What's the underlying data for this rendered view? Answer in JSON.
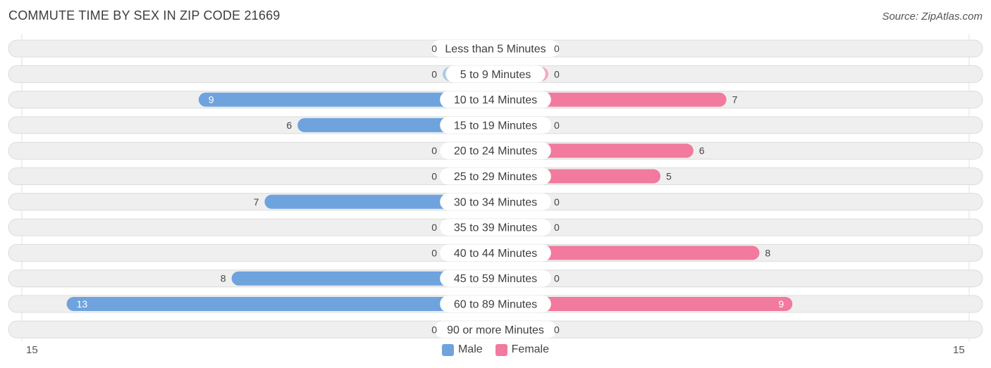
{
  "title": "COMMUTE TIME BY SEX IN ZIP CODE 21669",
  "source": "Source: ZipAtlas.com",
  "colors": {
    "male": "#6ea3dd",
    "male_light": "#a9c9ec",
    "female": "#f17a9e",
    "female_light": "#f6a9c0",
    "row_bg": "#efefef",
    "row_border": "#dcdcdc"
  },
  "axis": {
    "left_label": "15",
    "right_label": "15"
  },
  "legend": {
    "male_label": "Male",
    "female_label": "Female"
  },
  "chart_data": {
    "type": "bar",
    "title": "COMMUTE TIME BY SEX IN ZIP CODE 21669",
    "orientation": "horizontal-diverging",
    "xlim": [
      -15,
      15
    ],
    "legend_position": "bottom-center",
    "categories": [
      "Less than 5 Minutes",
      "5 to 9 Minutes",
      "10 to 14 Minutes",
      "15 to 19 Minutes",
      "20 to 24 Minutes",
      "25 to 29 Minutes",
      "30 to 34 Minutes",
      "35 to 39 Minutes",
      "40 to 44 Minutes",
      "45 to 59 Minutes",
      "60 to 89 Minutes",
      "90 or more Minutes"
    ],
    "series": [
      {
        "name": "Male",
        "values": [
          0,
          0,
          9,
          6,
          0,
          0,
          7,
          0,
          0,
          8,
          13,
          0
        ]
      },
      {
        "name": "Female",
        "values": [
          0,
          0,
          7,
          0,
          6,
          5,
          0,
          0,
          8,
          0,
          9,
          0
        ]
      }
    ]
  }
}
